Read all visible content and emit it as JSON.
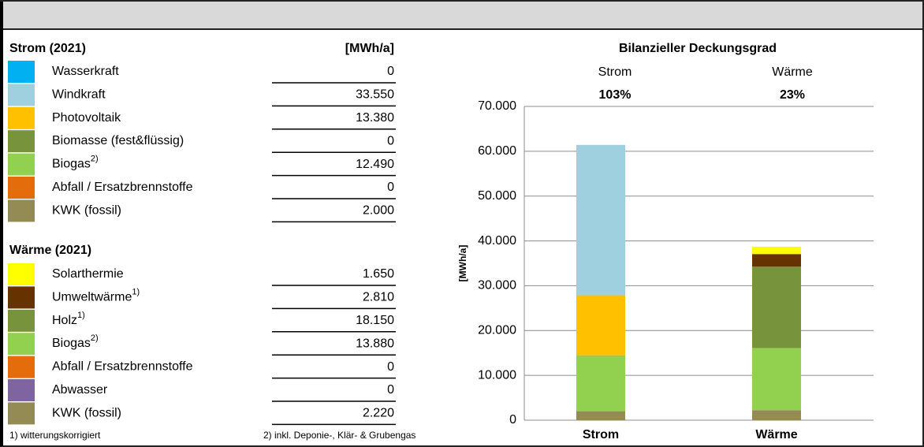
{
  "strom": {
    "heading": "Strom (2021)",
    "unit": "[MWh/a]",
    "rows": [
      {
        "label": "Wasserkraft",
        "value": 0,
        "value_label": "0",
        "color": "#00b0f0"
      },
      {
        "label": "Windkraft",
        "value": 33550,
        "value_label": "33.550",
        "color": "#9fd0df"
      },
      {
        "label": "Photovoltaik",
        "value": 13380,
        "value_label": "13.380",
        "color": "#ffc000"
      },
      {
        "label": "Biomasse (fest&flüssig)",
        "value": 0,
        "value_label": "0",
        "color": "#77933c"
      },
      {
        "label": "Biogas",
        "note": "2)",
        "value": 12490,
        "value_label": "12.490",
        "color": "#92d050"
      },
      {
        "label": "Abfall / Ersatzbrennstoffe",
        "value": 0,
        "value_label": "0",
        "color": "#e46c0a"
      },
      {
        "label": "KWK (fossil)",
        "value": 2000,
        "value_label": "2.000",
        "color": "#948a54"
      }
    ]
  },
  "waerme": {
    "heading": "Wärme (2021)",
    "rows": [
      {
        "label": "Solarthermie",
        "value": 1650,
        "value_label": "1.650",
        "color": "#ffff00"
      },
      {
        "label": "Umweltwärme",
        "note": "1)",
        "value": 2810,
        "value_label": "2.810",
        "color": "#663300"
      },
      {
        "label": "Holz",
        "note": "1)",
        "value": 18150,
        "value_label": "18.150",
        "color": "#77933c"
      },
      {
        "label": "Biogas",
        "note": "2)",
        "value": 13880,
        "value_label": "13.880",
        "color": "#92d050"
      },
      {
        "label": "Abfall / Ersatzbrennstoffe",
        "value": 0,
        "value_label": "0",
        "color": "#e46c0a"
      },
      {
        "label": "Abwasser",
        "value": 0,
        "value_label": "0",
        "color": "#8064a2"
      },
      {
        "label": "KWK (fossil)",
        "value": 2220,
        "value_label": "2.220",
        "color": "#948a54"
      }
    ]
  },
  "footnotes": [
    "1) witterungskorrigiert",
    "2) inkl. Deponie-, Klär- & Grubengas"
  ],
  "chart_data": {
    "type": "bar",
    "stacked": true,
    "title": "Bilanzieller Deckungsgrad",
    "column_heads": [
      "Strom",
      "Wärme"
    ],
    "coverage_labels": [
      "103%",
      "23%"
    ],
    "categories": [
      "Strom",
      "Wärme"
    ],
    "ylabel": "[MWh/a]",
    "ylim": [
      0,
      70000
    ],
    "yticks": [
      0,
      {
        "value": 10000,
        "label": "10.000"
      },
      {
        "value": 20000,
        "label": "20.000"
      },
      {
        "value": 30000,
        "label": "30.000"
      },
      {
        "value": 40000,
        "label": "40.000"
      },
      {
        "value": 50000,
        "label": "50.000"
      },
      {
        "value": 60000,
        "label": "60.000"
      },
      {
        "value": 70000,
        "label": "70.000"
      }
    ],
    "grid": true
  }
}
